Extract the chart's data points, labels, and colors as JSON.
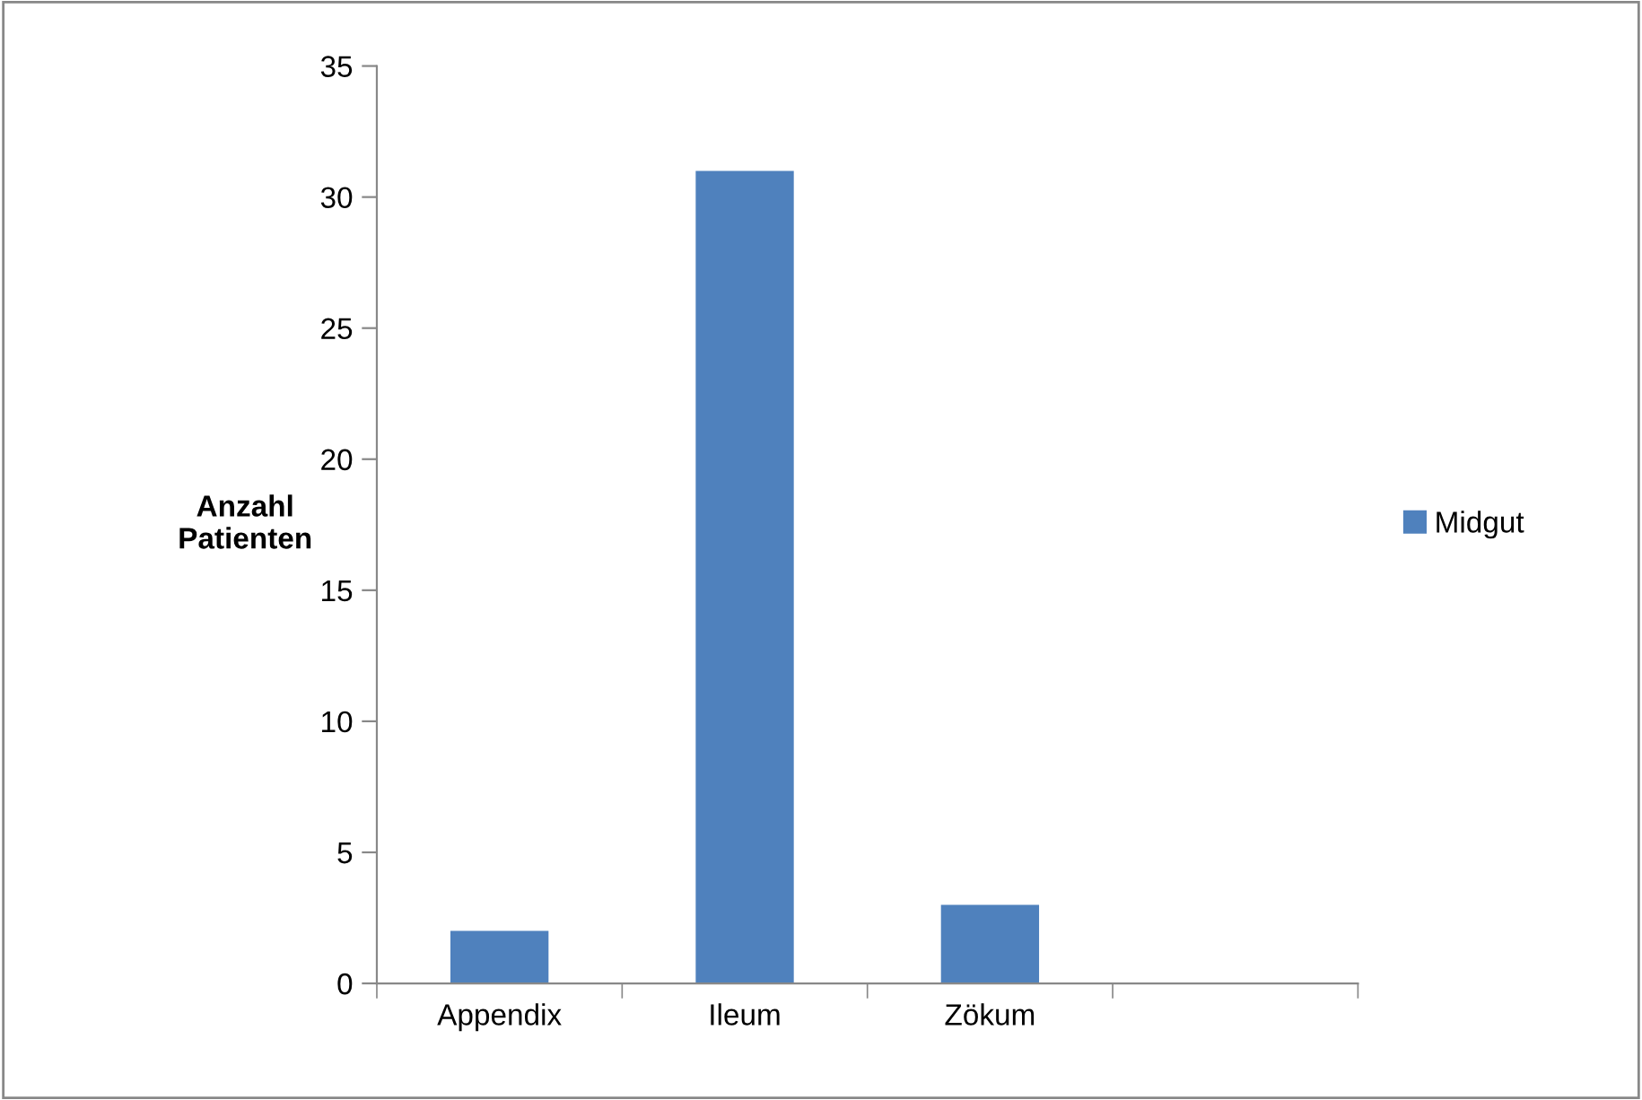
{
  "chart_data": {
    "type": "bar",
    "ylabel": "Anzahl\nPatienten",
    "categories": [
      "Appendix",
      "Ileum",
      "Zökum",
      null
    ],
    "series": [
      {
        "name": "Midgut",
        "color": "#4f81bd",
        "values": [
          2,
          31,
          3,
          null
        ]
      }
    ],
    "ylim": [
      0,
      35
    ],
    "yticks": [
      0,
      5,
      10,
      15,
      20,
      25,
      30,
      35
    ],
    "grid": false,
    "legend": "right"
  }
}
